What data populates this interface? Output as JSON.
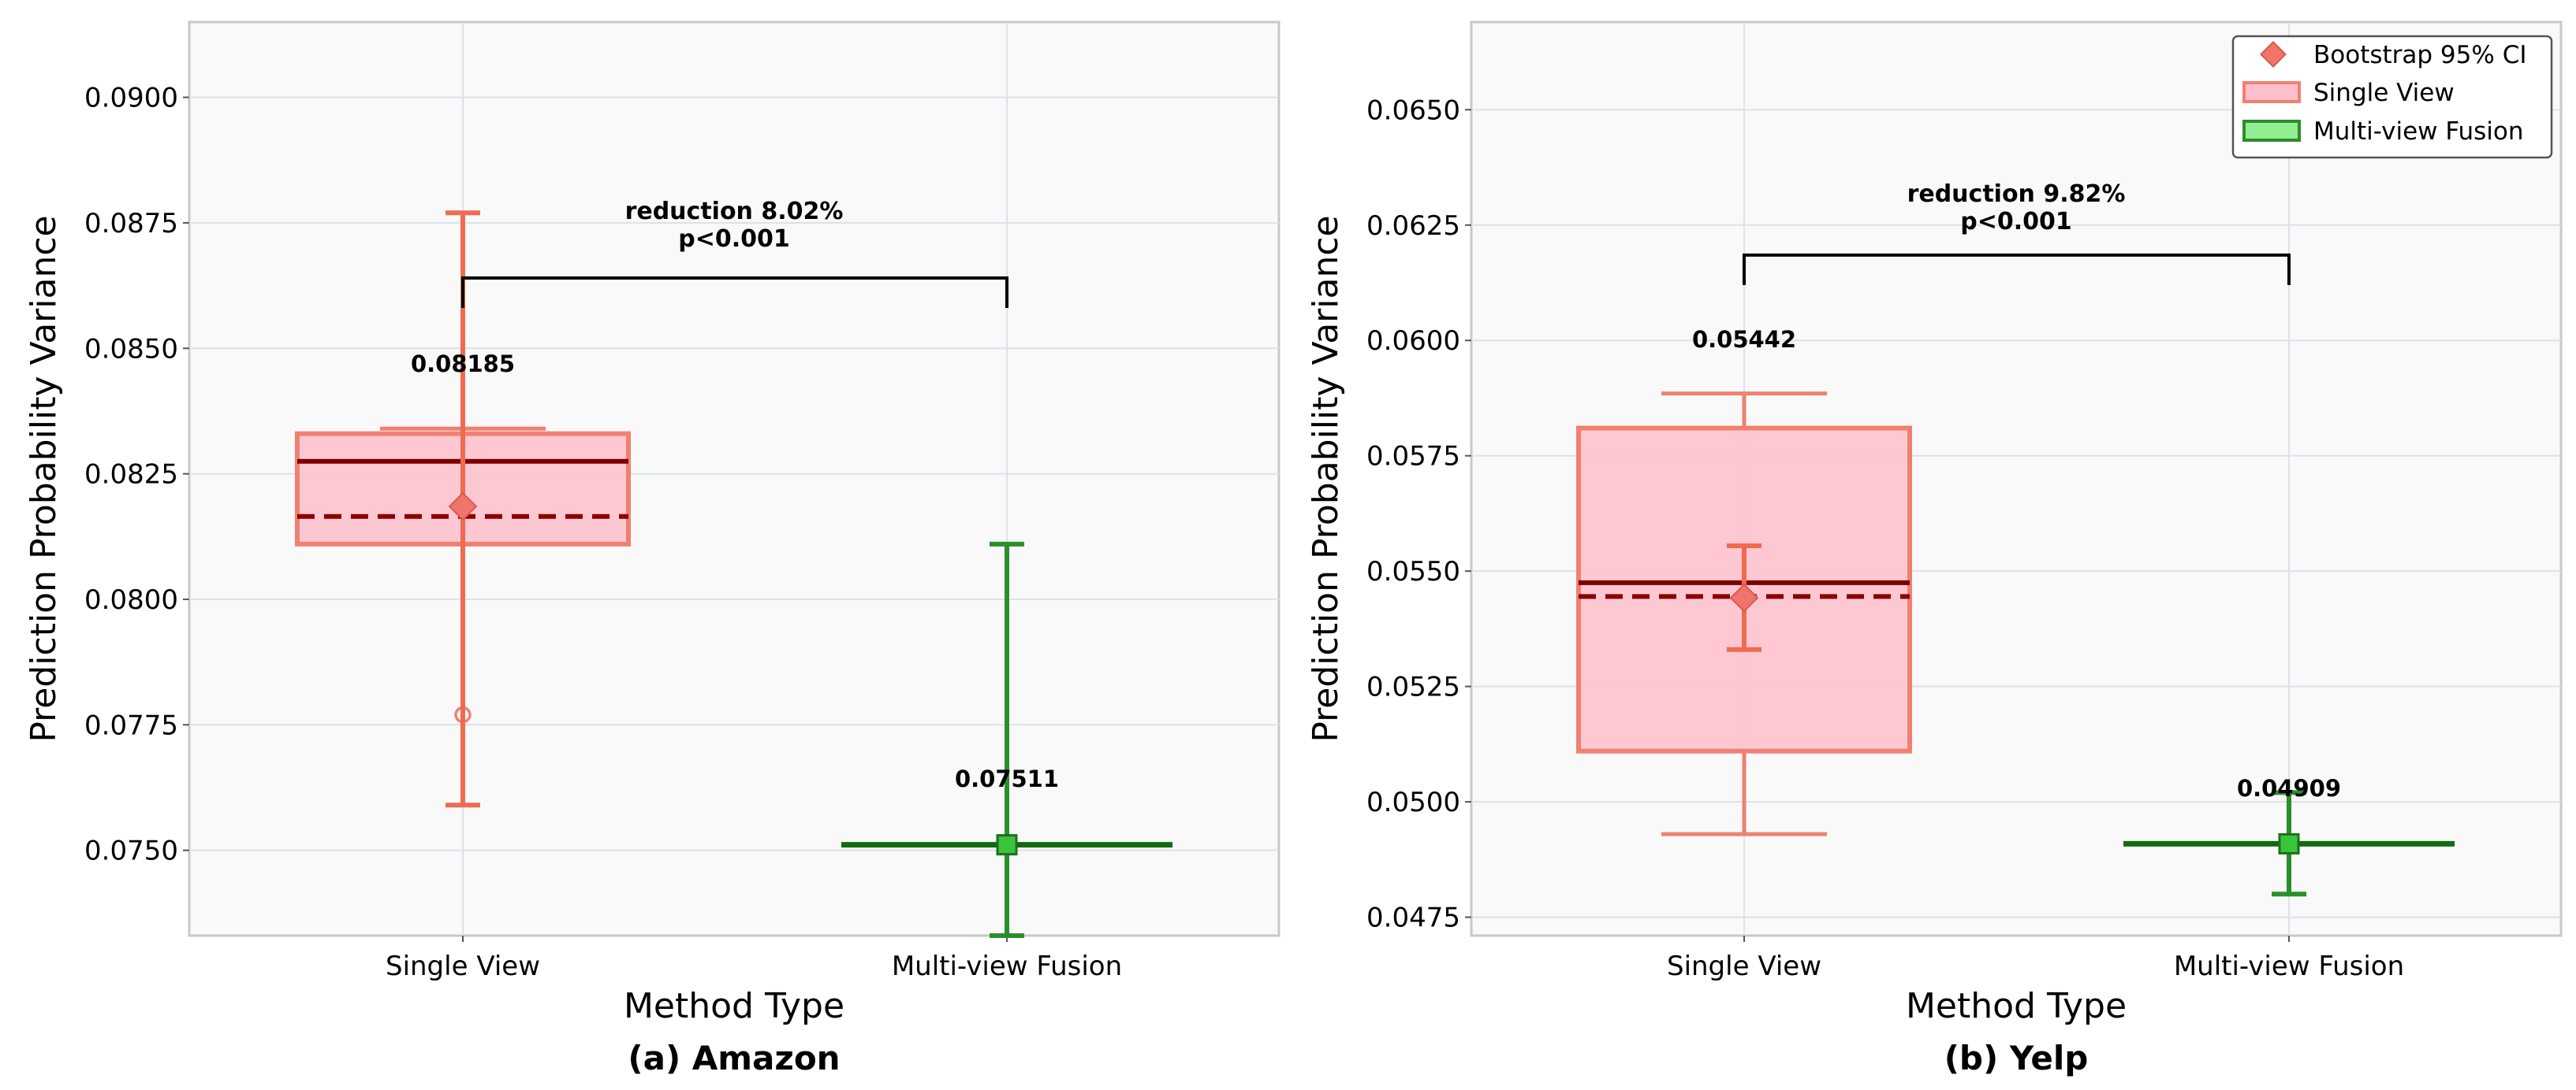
{
  "chart_data": [
    {
      "type": "box",
      "title": "(a) Amazon",
      "xlabel": "Method Type",
      "ylabel": "Prediction Probability Variance",
      "ylim": [
        0.0733,
        0.0915
      ],
      "yticks": [
        "0.0750",
        "0.0775",
        "0.0800",
        "0.0825",
        "0.0850",
        "0.0875",
        "0.0900"
      ],
      "ytick_values": [
        0.075,
        0.0775,
        0.08,
        0.0825,
        0.085,
        0.0875,
        0.09
      ],
      "grid": true,
      "categories": [
        "Single View",
        "Multi-view Fusion"
      ],
      "boxes": [
        {
          "category": "Single View",
          "whisker_low": 0.0811,
          "q1": 0.0811,
          "median": 0.08275,
          "mean": 0.08165,
          "q3": 0.0833,
          "whisker_high": 0.0834,
          "outliers": [
            0.0777
          ],
          "color": "#f08070",
          "fill": "#ffc0cb"
        },
        {
          "category": "Multi-view Fusion",
          "whisker_low": 0.07511,
          "q1": 0.07511,
          "median": 0.07511,
          "mean": 0.07511,
          "q3": 0.07511,
          "whisker_high": 0.07511,
          "outliers": [],
          "color": "#2e8b2e",
          "fill": "#90ee90"
        }
      ],
      "ci": [
        {
          "category": "Single View",
          "point": 0.08185,
          "low": 0.0759,
          "high": 0.0877,
          "label": "0.08185",
          "color": "#ef6b4f"
        },
        {
          "category": "Multi-view Fusion",
          "point": 0.07511,
          "low": 0.0733,
          "high": 0.0811,
          "label": "0.07511",
          "color": "#2a8f2a"
        }
      ],
      "bracket": {
        "y": 0.0864,
        "line1": "reduction 8.02%",
        "line2": "p<0.001"
      }
    },
    {
      "type": "box",
      "title": "(b) Yelp",
      "xlabel": "Method Type",
      "ylabel": "Prediction Probability Variance",
      "ylim": [
        0.0471,
        0.0669
      ],
      "yticks": [
        "0.0475",
        "0.0500",
        "0.0525",
        "0.0550",
        "0.0575",
        "0.0600",
        "0.0625",
        "0.0650"
      ],
      "ytick_values": [
        0.0475,
        0.05,
        0.0525,
        0.055,
        0.0575,
        0.06,
        0.0625,
        0.065
      ],
      "grid": true,
      "categories": [
        "Single View",
        "Multi-view Fusion"
      ],
      "boxes": [
        {
          "category": "Single View",
          "whisker_low": 0.0493,
          "q1": 0.0511,
          "median": 0.05475,
          "mean": 0.05445,
          "q3": 0.0581,
          "whisker_high": 0.05885,
          "outliers": [],
          "color": "#f08070",
          "fill": "#ffc0cb"
        },
        {
          "category": "Multi-view Fusion",
          "whisker_low": 0.04909,
          "q1": 0.04909,
          "median": 0.04909,
          "mean": 0.04909,
          "q3": 0.04909,
          "whisker_high": 0.04909,
          "outliers": [],
          "color": "#2e8b2e",
          "fill": "#90ee90"
        }
      ],
      "ci": [
        {
          "category": "Single View",
          "point": 0.05442,
          "low": 0.0533,
          "high": 0.05555,
          "label": "0.05442",
          "color": "#ef6b4f"
        },
        {
          "category": "Multi-view Fusion",
          "point": 0.04909,
          "low": 0.048,
          "high": 0.0502,
          "label": "0.04909",
          "color": "#2a8f2a"
        }
      ],
      "bracket": {
        "y": 0.06185,
        "line1": "reduction 9.82%",
        "line2": "p<0.001"
      },
      "legend": {
        "placement": "top-right",
        "entries": [
          "Bootstrap 95% CI",
          "Single View",
          "Multi-view Fusion"
        ]
      }
    }
  ]
}
